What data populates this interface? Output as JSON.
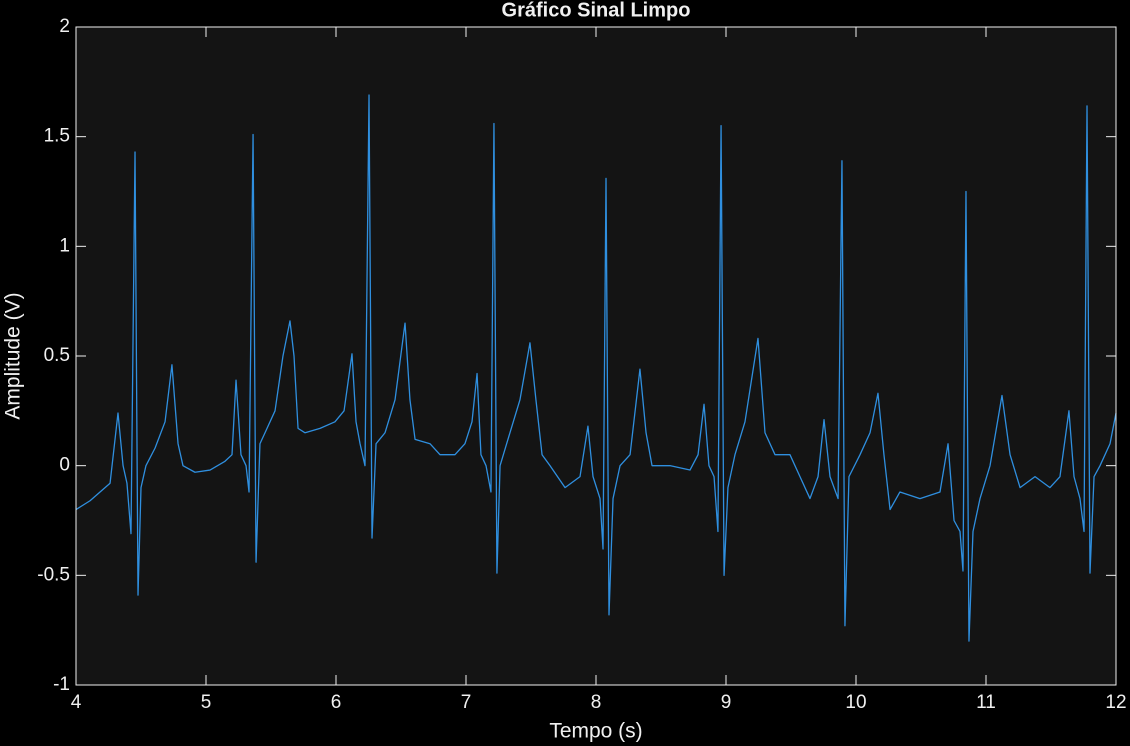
{
  "chart_data": {
    "type": "line",
    "title": "Gráfico Sinal Limpo",
    "x_label": "Tempo (s)",
    "y_label": "Amplitude (V)",
    "color": "#2f8fdf",
    "xlim": [
      4,
      12
    ],
    "xticks": [
      4,
      5,
      6,
      7,
      8,
      9,
      10,
      11,
      12
    ],
    "ylim": [
      -1,
      2
    ],
    "yticks": [
      -1,
      -0.5,
      0,
      0.5,
      1,
      1.5,
      2
    ],
    "grid": false,
    "x": [
      4.0,
      4.108,
      4.185,
      4.262,
      4.323,
      4.362,
      4.392,
      4.423,
      4.454,
      4.477,
      4.5,
      4.538,
      4.608,
      4.685,
      4.738,
      4.785,
      4.823,
      4.915,
      5.031,
      5.146,
      5.2,
      5.231,
      5.269,
      5.308,
      5.331,
      5.362,
      5.385,
      5.415,
      5.454,
      5.531,
      5.592,
      5.646,
      5.677,
      5.708,
      5.762,
      5.877,
      5.992,
      6.062,
      6.123,
      6.154,
      6.185,
      6.223,
      6.254,
      6.277,
      6.308,
      6.377,
      6.454,
      6.531,
      6.569,
      6.608,
      6.723,
      6.8,
      6.915,
      6.992,
      7.046,
      7.085,
      7.115,
      7.154,
      7.192,
      7.215,
      7.238,
      7.262,
      7.338,
      7.415,
      7.492,
      7.538,
      7.585,
      7.646,
      7.762,
      7.877,
      7.938,
      7.977,
      8.031,
      8.054,
      8.077,
      8.1,
      8.131,
      8.185,
      8.262,
      8.338,
      8.385,
      8.431,
      8.569,
      8.723,
      8.785,
      8.831,
      8.869,
      8.908,
      8.938,
      8.962,
      8.985,
      9.015,
      9.069,
      9.146,
      9.246,
      9.3,
      9.377,
      9.492,
      9.569,
      9.646,
      9.708,
      9.754,
      9.8,
      9.862,
      9.892,
      9.915,
      9.946,
      10.031,
      10.108,
      10.169,
      10.215,
      10.262,
      10.338,
      10.492,
      10.646,
      10.708,
      10.754,
      10.8,
      10.823,
      10.846,
      10.869,
      10.9,
      10.954,
      11.031,
      11.123,
      11.185,
      11.262,
      11.377,
      11.492,
      11.569,
      11.638,
      11.677,
      11.723,
      11.754,
      11.777,
      11.8,
      11.831,
      11.877,
      11.954,
      12.0
    ],
    "values": [
      -0.2,
      -0.16,
      -0.12,
      -0.08,
      0.24,
      0.0,
      -0.08,
      -0.31,
      1.43,
      -0.59,
      -0.1,
      0.0,
      0.08,
      0.2,
      0.46,
      0.1,
      0.0,
      -0.03,
      -0.02,
      0.02,
      0.05,
      0.39,
      0.05,
      0.0,
      -0.12,
      1.51,
      -0.44,
      0.1,
      0.15,
      0.25,
      0.5,
      0.66,
      0.5,
      0.17,
      0.15,
      0.17,
      0.2,
      0.25,
      0.51,
      0.2,
      0.1,
      0.0,
      1.69,
      -0.33,
      0.1,
      0.15,
      0.3,
      0.65,
      0.3,
      0.12,
      0.1,
      0.05,
      0.05,
      0.1,
      0.2,
      0.42,
      0.05,
      0.0,
      -0.12,
      1.56,
      -0.49,
      0.0,
      0.15,
      0.3,
      0.56,
      0.3,
      0.05,
      0.0,
      -0.1,
      -0.05,
      0.18,
      -0.05,
      -0.15,
      -0.38,
      1.31,
      -0.68,
      -0.15,
      0.0,
      0.05,
      0.44,
      0.15,
      0.0,
      0.0,
      -0.02,
      0.05,
      0.28,
      0.0,
      -0.05,
      -0.3,
      1.55,
      -0.5,
      -0.1,
      0.05,
      0.2,
      0.58,
      0.15,
      0.05,
      0.05,
      -0.05,
      -0.15,
      -0.05,
      0.21,
      -0.05,
      -0.15,
      1.39,
      -0.73,
      -0.05,
      0.05,
      0.15,
      0.33,
      0.05,
      -0.2,
      -0.12,
      -0.15,
      -0.12,
      0.1,
      -0.25,
      -0.3,
      -0.48,
      1.25,
      -0.8,
      -0.3,
      -0.15,
      0.0,
      0.32,
      0.05,
      -0.1,
      -0.05,
      -0.1,
      -0.05,
      0.25,
      -0.05,
      -0.15,
      -0.3,
      1.64,
      -0.49,
      -0.05,
      0.0,
      0.1,
      0.24
    ]
  }
}
